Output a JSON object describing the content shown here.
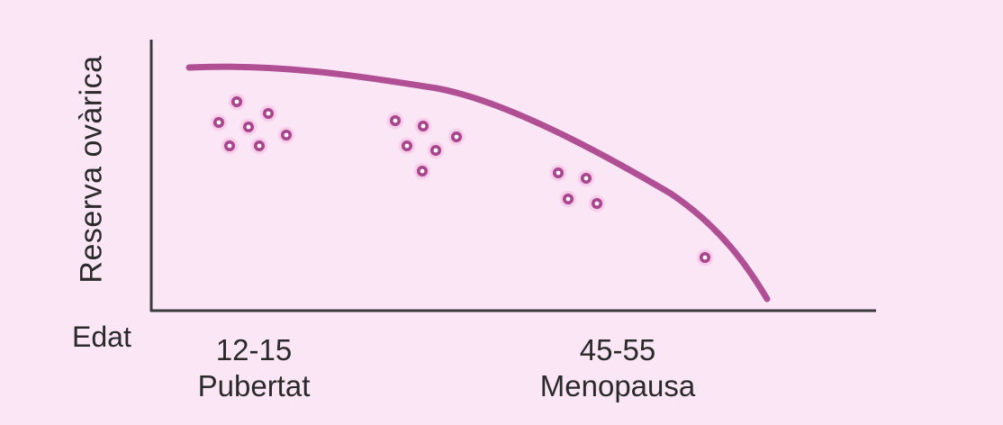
{
  "diagram": {
    "y_axis_label": "Reserva ovàrica",
    "x_axis_label": "Edat",
    "groups": [
      {
        "age": "12-15",
        "stage": "Pubertat"
      },
      {
        "age": "45-55",
        "stage": "Menopausa"
      }
    ],
    "colors": {
      "background": "#fbe6f6",
      "curve": "#b04f94",
      "axes": "#3a3a3a",
      "follicle_ring": "#a8468d",
      "follicle_halo": "#f6c6e6",
      "follicle_core": "#ffffff"
    },
    "icon": "follicle-icon"
  }
}
